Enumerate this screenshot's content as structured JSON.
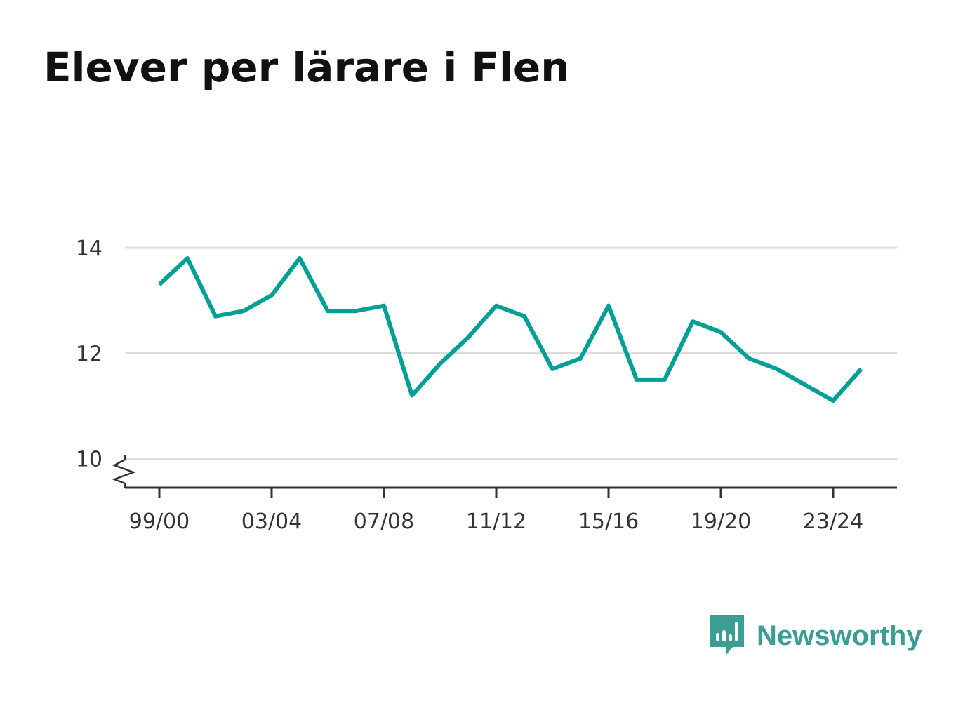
{
  "title": "Elever per lärare i Flen",
  "brand": {
    "name": "Newsworthy",
    "icon": "newsworthy-logo-icon",
    "color": "#3a9e95"
  },
  "chart_data": {
    "type": "line",
    "title": "Elever per lärare i Flen",
    "xlabel": "",
    "ylabel": "",
    "categories": [
      "99/00",
      "00/01",
      "01/02",
      "02/03",
      "03/04",
      "04/05",
      "05/06",
      "06/07",
      "07/08",
      "08/09",
      "09/10",
      "10/11",
      "11/12",
      "12/13",
      "13/14",
      "14/15",
      "15/16",
      "16/17",
      "17/18",
      "18/19",
      "19/20",
      "20/21",
      "21/22",
      "22/23",
      "23/24",
      "24/25"
    ],
    "x_tick_labels": [
      "99/00",
      "03/04",
      "07/08",
      "11/12",
      "15/16",
      "19/20",
      "23/24"
    ],
    "series": [
      {
        "values": [
          13.3,
          13.8,
          12.7,
          12.8,
          13.1,
          13.8,
          12.8,
          12.8,
          12.9,
          11.2,
          11.8,
          12.3,
          12.9,
          12.7,
          11.7,
          11.9,
          12.9,
          11.5,
          11.5,
          12.6,
          12.4,
          11.9,
          11.7,
          11.4,
          11.1,
          11.7
        ],
        "color": "#00a096"
      }
    ],
    "y_ticks": [
      10,
      12,
      14
    ],
    "ylim": [
      9.45,
      14.0
    ],
    "axis_break": true,
    "grid": true,
    "legend": "none"
  }
}
